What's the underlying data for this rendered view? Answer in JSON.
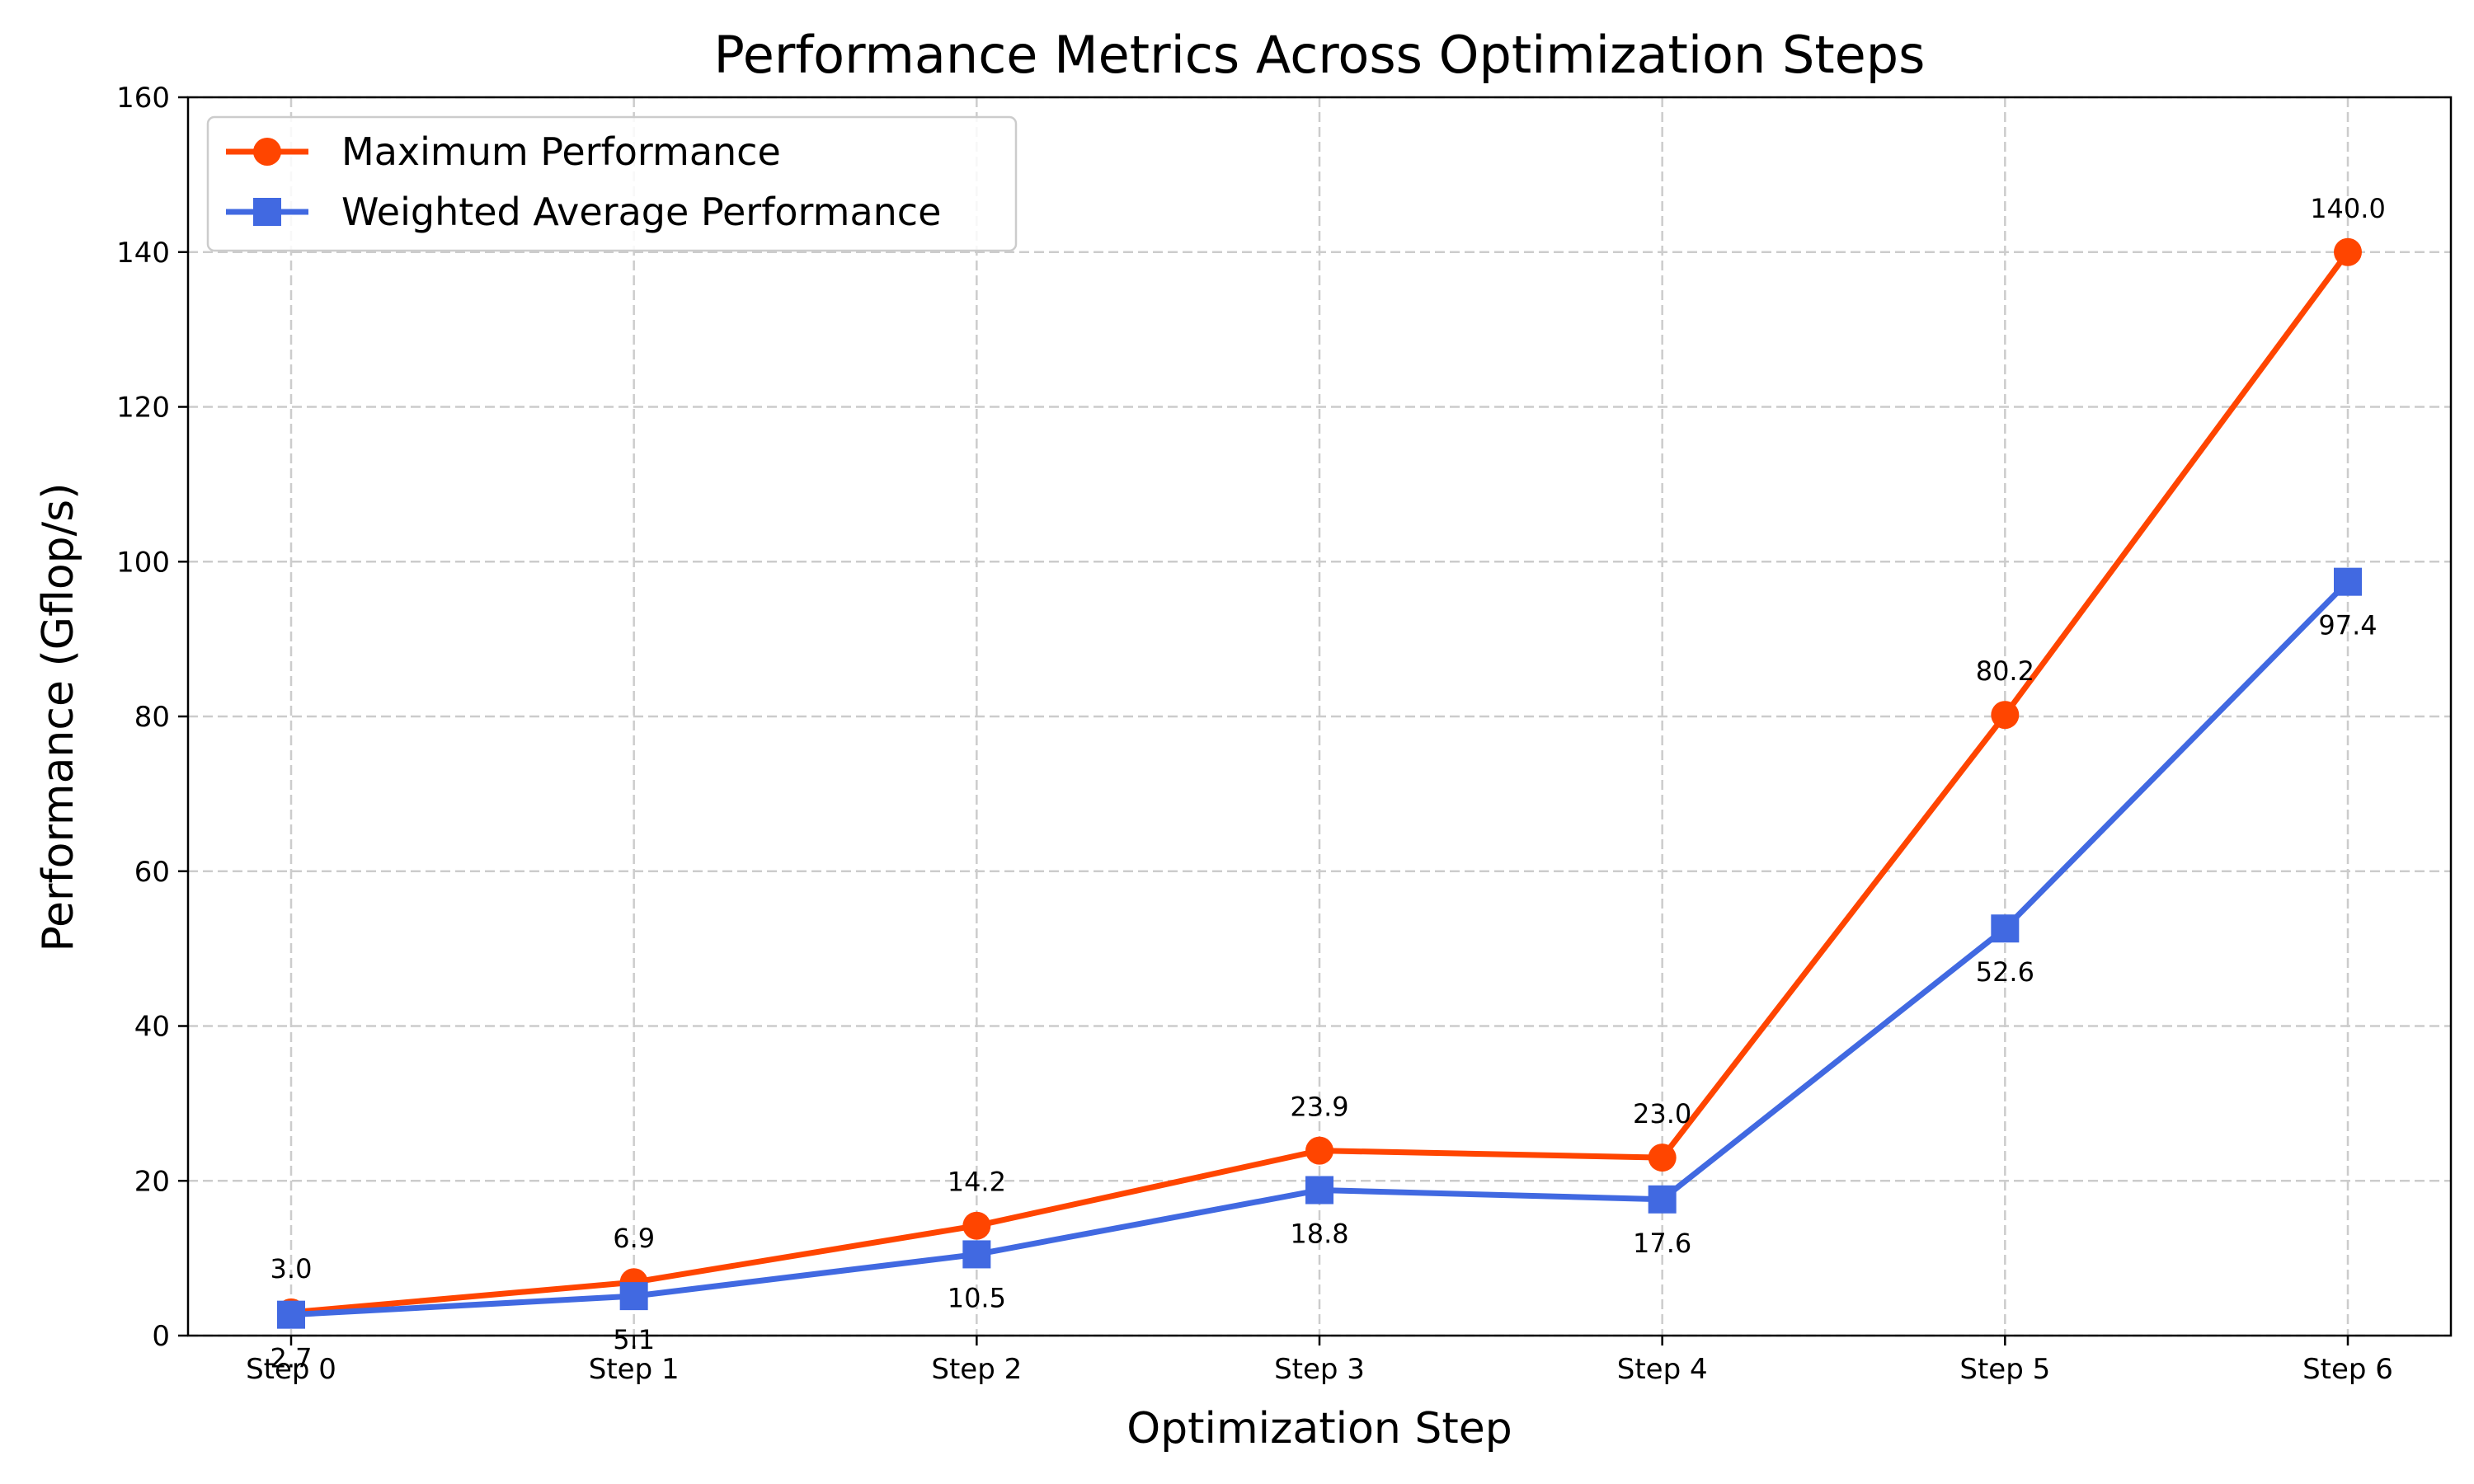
{
  "chart_data": {
    "type": "line",
    "title": "Performance Metrics Across Optimization Steps",
    "xlabel": "Optimization Step",
    "ylabel": "Performance (Gflop/s)",
    "categories": [
      "Step 0",
      "Step 1",
      "Step 2",
      "Step 3",
      "Step 4",
      "Step 5",
      "Step 6"
    ],
    "ylim": [
      0,
      160
    ],
    "yticks": [
      0,
      20,
      40,
      60,
      80,
      100,
      120,
      140,
      160
    ],
    "grid": true,
    "legend_position": "upper-left",
    "series": [
      {
        "name": "Maximum Performance",
        "values": [
          3.0,
          6.9,
          14.2,
          23.9,
          23.0,
          80.2,
          140.0
        ],
        "labels": [
          "3.0",
          "6.9",
          "14.2",
          "23.9",
          "23.0",
          "80.2",
          "140.0"
        ],
        "color": "#ff4500",
        "marker": "circle",
        "label_position": "above"
      },
      {
        "name": "Weighted Average Performance",
        "values": [
          2.7,
          5.1,
          10.5,
          18.8,
          17.6,
          52.6,
          97.4
        ],
        "labels": [
          "2.7",
          "5.1",
          "10.5",
          "18.8",
          "17.6",
          "52.6",
          "97.4"
        ],
        "color": "#4169e1",
        "marker": "square",
        "label_position": "below"
      }
    ]
  }
}
